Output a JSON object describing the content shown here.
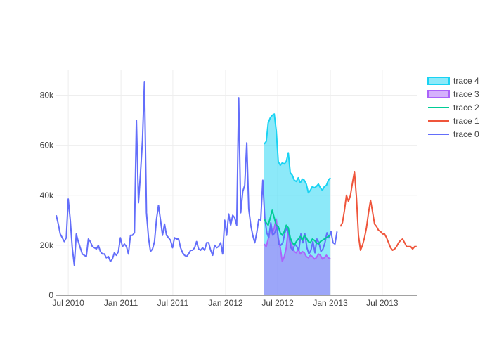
{
  "chart_data": {
    "type": "line",
    "title": "",
    "xlabel": "",
    "ylabel": "",
    "x_range": [
      "2010-05-20",
      "2013-11-01"
    ],
    "ylim": [
      0,
      90000
    ],
    "grid": true,
    "legend_position": "right",
    "legend_order": [
      "trace 4",
      "trace 3",
      "trace 2",
      "trace 1",
      "trace 0"
    ],
    "x_ticks": [
      {
        "date": "2010-07-01",
        "label": "Jul 2010"
      },
      {
        "date": "2011-01-01",
        "label": "Jan 2011"
      },
      {
        "date": "2011-07-01",
        "label": "Jul 2011"
      },
      {
        "date": "2012-01-01",
        "label": "Jan 2012"
      },
      {
        "date": "2012-07-01",
        "label": "Jul 2012"
      },
      {
        "date": "2013-01-01",
        "label": "Jan 2013"
      },
      {
        "date": "2013-07-01",
        "label": "Jul 2013"
      }
    ],
    "y_ticks": [
      {
        "value": 0,
        "label": "0"
      },
      {
        "value": 20000,
        "label": "20k"
      },
      {
        "value": 40000,
        "label": "40k"
      },
      {
        "value": 60000,
        "label": "60k"
      },
      {
        "value": 80000,
        "label": "80k"
      }
    ],
    "series": [
      {
        "name": "trace 4",
        "type": "area",
        "color": "#19d3f3",
        "fill_to": "zero",
        "x": [
          "2012-05-15",
          "2012-05-22",
          "2012-05-29",
          "2012-06-05",
          "2012-06-12",
          "2012-06-19",
          "2012-06-26",
          "2012-07-03",
          "2012-07-10",
          "2012-07-17",
          "2012-07-24",
          "2012-07-31",
          "2012-08-07",
          "2012-08-14",
          "2012-08-21",
          "2012-08-28",
          "2012-09-04",
          "2012-09-11",
          "2012-09-18",
          "2012-09-25",
          "2012-10-02",
          "2012-10-09",
          "2012-10-16",
          "2012-10-23",
          "2012-10-30",
          "2012-11-06",
          "2012-11-13",
          "2012-11-20",
          "2012-11-27",
          "2012-12-04",
          "2012-12-11",
          "2012-12-18",
          "2012-12-25",
          "2013-01-01"
        ],
        "y": [
          60500,
          61500,
          69000,
          71000,
          72000,
          72500,
          66000,
          53500,
          52000,
          53000,
          52500,
          53500,
          57000,
          49000,
          48000,
          46000,
          45500,
          47000,
          45000,
          46500,
          46000,
          44500,
          41000,
          42000,
          43500,
          43000,
          43500,
          44500,
          43000,
          42000,
          43500,
          44000,
          46000,
          47000
        ]
      },
      {
        "name": "trace 3",
        "type": "area",
        "color": "#ab63fa",
        "fill_to": "zero",
        "x": [
          "2012-05-15",
          "2012-05-22",
          "2012-05-29",
          "2012-06-05",
          "2012-06-12",
          "2012-06-19",
          "2012-06-26",
          "2012-07-03",
          "2012-07-10",
          "2012-07-17",
          "2012-07-24",
          "2012-07-31",
          "2012-08-07",
          "2012-08-14",
          "2012-08-21",
          "2012-08-28",
          "2012-09-04",
          "2012-09-11",
          "2012-09-18",
          "2012-09-25",
          "2012-10-02",
          "2012-10-09",
          "2012-10-16",
          "2012-10-23",
          "2012-10-30",
          "2012-11-06",
          "2012-11-13",
          "2012-11-20",
          "2012-11-27",
          "2012-12-04",
          "2012-12-11",
          "2012-12-18",
          "2012-12-25",
          "2013-01-01"
        ],
        "y": [
          20500,
          19500,
          22500,
          26500,
          24500,
          27000,
          30500,
          23000,
          19000,
          13500,
          15500,
          19000,
          26500,
          21500,
          19500,
          17500,
          17000,
          18500,
          16500,
          17500,
          17000,
          15500,
          15000,
          16000,
          15500,
          14500,
          15000,
          16500,
          16000,
          14500,
          15000,
          16000,
          15000,
          14500
        ]
      },
      {
        "name": "trace 2",
        "type": "line",
        "color": "#00cc96",
        "x": [
          "2012-05-15",
          "2012-05-22",
          "2012-05-29",
          "2012-06-05",
          "2012-06-12",
          "2012-06-19",
          "2012-06-26",
          "2012-07-03",
          "2012-07-10",
          "2012-07-17",
          "2012-07-24",
          "2012-07-31",
          "2012-08-07",
          "2012-08-14",
          "2012-08-21",
          "2012-08-28",
          "2012-09-04",
          "2012-09-11",
          "2012-09-18",
          "2012-09-25",
          "2012-10-02",
          "2012-10-09",
          "2012-10-16",
          "2012-10-23",
          "2012-10-30",
          "2012-11-06",
          "2012-11-13",
          "2012-11-20",
          "2012-11-27",
          "2012-12-04",
          "2012-12-11",
          "2012-12-18",
          "2012-12-25",
          "2013-01-01"
        ],
        "y": [
          30500,
          29000,
          28000,
          31000,
          34000,
          31000,
          28000,
          27500,
          25000,
          24000,
          25500,
          28000,
          27000,
          23000,
          21000,
          20000,
          21500,
          22500,
          23500,
          22000,
          24000,
          23000,
          21500,
          21000,
          22500,
          22000,
          21000,
          20500,
          21500,
          22000,
          22500,
          23000,
          23500,
          24000
        ]
      },
      {
        "name": "trace 1",
        "type": "line",
        "color": "#ef553b",
        "x": [
          "2013-02-05",
          "2013-02-12",
          "2013-02-19",
          "2013-02-26",
          "2013-03-05",
          "2013-03-12",
          "2013-03-19",
          "2013-03-26",
          "2013-04-02",
          "2013-04-09",
          "2013-04-16",
          "2013-04-23",
          "2013-04-30",
          "2013-05-07",
          "2013-05-14",
          "2013-05-21",
          "2013-05-28",
          "2013-06-04",
          "2013-06-11",
          "2013-06-18",
          "2013-06-25",
          "2013-07-02",
          "2013-07-09",
          "2013-07-16",
          "2013-07-23",
          "2013-07-30",
          "2013-08-06",
          "2013-08-13",
          "2013-08-20",
          "2013-08-27",
          "2013-09-03",
          "2013-09-10",
          "2013-09-17",
          "2013-09-24",
          "2013-10-01",
          "2013-10-08",
          "2013-10-15",
          "2013-10-22",
          "2013-10-29"
        ],
        "y": [
          27500,
          29000,
          34000,
          40000,
          37500,
          40000,
          45000,
          49500,
          39000,
          24000,
          18000,
          20000,
          23000,
          27000,
          33000,
          38000,
          33500,
          28500,
          27500,
          26000,
          25500,
          24500,
          24500,
          23000,
          21000,
          19000,
          18000,
          18500,
          19500,
          21000,
          22000,
          22500,
          21000,
          19500,
          19500,
          19500,
          18500,
          19500,
          19500
        ]
      },
      {
        "name": "trace 0",
        "type": "line",
        "color": "#636efa",
        "x": [
          "2010-05-20",
          "2010-05-27",
          "2010-06-03",
          "2010-06-10",
          "2010-06-17",
          "2010-06-24",
          "2010-07-01",
          "2010-07-08",
          "2010-07-15",
          "2010-07-22",
          "2010-07-29",
          "2010-08-05",
          "2010-08-12",
          "2010-08-19",
          "2010-08-26",
          "2010-09-02",
          "2010-09-09",
          "2010-09-16",
          "2010-09-23",
          "2010-09-30",
          "2010-10-07",
          "2010-10-14",
          "2010-10-21",
          "2010-10-28",
          "2010-11-04",
          "2010-11-11",
          "2010-11-18",
          "2010-11-25",
          "2010-12-02",
          "2010-12-09",
          "2010-12-16",
          "2010-12-23",
          "2010-12-30",
          "2011-01-06",
          "2011-01-13",
          "2011-01-20",
          "2011-01-27",
          "2011-02-03",
          "2011-02-10",
          "2011-02-17",
          "2011-02-24",
          "2011-03-03",
          "2011-03-10",
          "2011-03-17",
          "2011-03-24",
          "2011-03-31",
          "2011-04-07",
          "2011-04-14",
          "2011-04-21",
          "2011-04-28",
          "2011-05-05",
          "2011-05-12",
          "2011-05-19",
          "2011-05-26",
          "2011-06-02",
          "2011-06-09",
          "2011-06-16",
          "2011-06-23",
          "2011-06-30",
          "2011-07-07",
          "2011-07-14",
          "2011-07-21",
          "2011-07-28",
          "2011-08-04",
          "2011-08-11",
          "2011-08-18",
          "2011-08-25",
          "2011-09-01",
          "2011-09-08",
          "2011-09-15",
          "2011-09-22",
          "2011-09-29",
          "2011-10-06",
          "2011-10-13",
          "2011-10-20",
          "2011-10-27",
          "2011-11-03",
          "2011-11-10",
          "2011-11-17",
          "2011-11-24",
          "2011-12-01",
          "2011-12-08",
          "2011-12-15",
          "2011-12-22",
          "2011-12-29",
          "2012-01-05",
          "2012-01-12",
          "2012-01-19",
          "2012-01-26",
          "2012-02-02",
          "2012-02-09",
          "2012-02-16",
          "2012-02-23",
          "2012-03-01",
          "2012-03-08",
          "2012-03-15",
          "2012-03-22",
          "2012-03-29",
          "2012-04-05",
          "2012-04-12",
          "2012-04-19",
          "2012-04-26",
          "2012-05-03",
          "2012-05-10",
          "2012-05-17",
          "2012-05-24",
          "2012-05-31",
          "2012-06-07",
          "2012-06-14",
          "2012-06-21",
          "2012-06-28",
          "2012-07-05",
          "2012-07-12",
          "2012-07-19",
          "2012-07-26",
          "2012-08-02",
          "2012-08-09",
          "2012-08-16",
          "2012-08-23",
          "2012-08-30",
          "2012-09-06",
          "2012-09-13",
          "2012-09-20",
          "2012-09-27",
          "2012-10-04",
          "2012-10-11",
          "2012-10-18",
          "2012-10-25",
          "2012-11-01",
          "2012-11-08",
          "2012-11-15",
          "2012-11-22",
          "2012-11-29",
          "2012-12-06",
          "2012-12-13",
          "2012-12-20",
          "2012-12-27",
          "2013-01-03",
          "2013-01-10",
          "2013-01-17",
          "2013-01-24"
        ],
        "y": [
          32000,
          28500,
          24500,
          23000,
          21500,
          23000,
          38500,
          30000,
          19000,
          12000,
          24500,
          21500,
          19000,
          16500,
          16000,
          15500,
          22500,
          21500,
          19500,
          19000,
          18500,
          20000,
          17500,
          16500,
          16500,
          15000,
          15500,
          13500,
          14500,
          17000,
          16000,
          17500,
          23000,
          19500,
          20500,
          19500,
          16500,
          24000,
          24000,
          25000,
          70000,
          37000,
          48500,
          62000,
          85500,
          33000,
          23000,
          17500,
          18500,
          21500,
          30500,
          36000,
          30000,
          24000,
          28500,
          24000,
          23000,
          22000,
          19000,
          23000,
          22500,
          22500,
          19000,
          17000,
          16000,
          15500,
          16500,
          18000,
          18000,
          19000,
          21500,
          18500,
          18000,
          19000,
          18000,
          21000,
          21000,
          18000,
          16000,
          20000,
          19000,
          19500,
          21000,
          16500,
          30000,
          24000,
          32500,
          28000,
          32000,
          31000,
          28000,
          79000,
          33000,
          41500,
          44000,
          61000,
          34500,
          28000,
          24000,
          21000,
          25000,
          30500,
          30000,
          46000,
          31000,
          25000,
          23000,
          29000,
          24000,
          25000,
          27500,
          20500,
          20000,
          21000,
          25000,
          27000,
          24500,
          19000,
          18000,
          20500,
          19500,
          18000,
          24500,
          21000,
          24500,
          19000,
          16500,
          18000,
          21500,
          17000,
          22500,
          21000,
          17500,
          18500,
          21000,
          25000,
          23000,
          25500,
          21000,
          20500,
          25500
        ]
      }
    ]
  }
}
